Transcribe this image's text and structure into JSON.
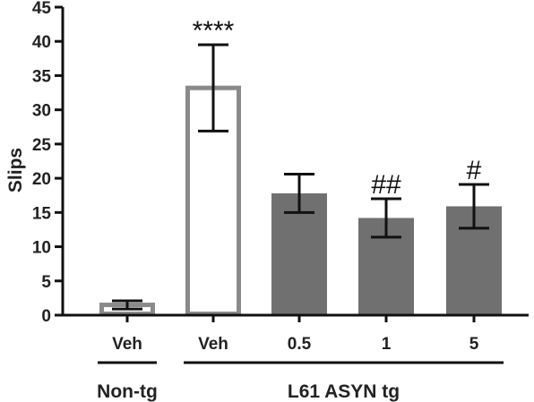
{
  "chart_data": {
    "type": "bar",
    "title": "",
    "ylabel": "Slips",
    "xlabel": "",
    "ylim": [
      0,
      45
    ],
    "yticks": [
      0,
      5,
      10,
      15,
      20,
      25,
      30,
      35,
      40,
      45
    ],
    "categories": [
      "Veh",
      "Veh",
      "0.5",
      "1",
      "5"
    ],
    "values": [
      1.5,
      33.2,
      17.8,
      14.2,
      15.9
    ],
    "errors": [
      0.6,
      6.3,
      2.8,
      2.8,
      3.2
    ],
    "bar_styles": [
      "outline-gray",
      "outline-gray",
      "solid-gray",
      "solid-gray",
      "solid-gray"
    ],
    "annotations": [
      "",
      "****",
      "",
      "##",
      "#"
    ],
    "groups": [
      {
        "label": "Non-tg",
        "first": 0,
        "last": 0
      },
      {
        "label": "L61 ASYN tg",
        "first": 1,
        "last": 4
      }
    ],
    "grid": false,
    "colors": {
      "bar_fill": "#707070",
      "bar_outline": "#8a8a8a",
      "axis": "#111111"
    }
  }
}
